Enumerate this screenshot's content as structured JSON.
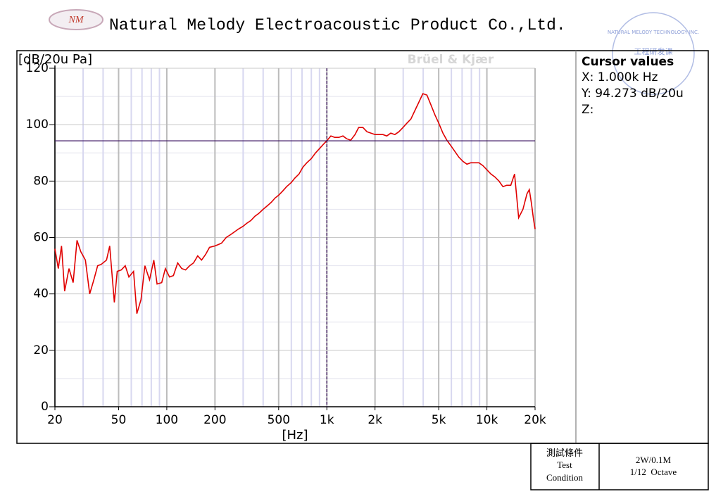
{
  "header": {
    "logo": "NM",
    "title": "Natural Melody Electroacoustic Product Co.,Ltd.",
    "stamp_outer": "NATURAL MELODY TECHNOLOGY INC.",
    "stamp_inner": "工程研发课"
  },
  "chart_data": {
    "type": "line",
    "ylabel": "[dB/20u Pa]",
    "xlabel": "[Hz]",
    "watermark": "Brüel & Kjær",
    "xscale": "log",
    "xlim": [
      20,
      20000
    ],
    "ylim": [
      0,
      120
    ],
    "grid": true,
    "xticks": [
      20,
      50,
      100,
      200,
      500,
      {
        "value": 1000,
        "label": "1k"
      },
      {
        "value": 2000,
        "label": "2k"
      },
      {
        "value": 5000,
        "label": "5k"
      },
      {
        "value": 10000,
        "label": "10k"
      },
      {
        "value": 20000,
        "label": "20k"
      }
    ],
    "xminorticks": [
      30,
      40,
      60,
      70,
      80,
      90,
      300,
      400,
      600,
      700,
      800,
      900,
      3000,
      4000,
      6000,
      7000,
      8000,
      9000
    ],
    "yticks": [
      0,
      20,
      40,
      60,
      80,
      100,
      120
    ],
    "yminorticks": [
      10,
      30,
      50,
      70,
      90,
      110
    ],
    "cursor": {
      "x": 1000,
      "y": 94.273,
      "color": "#3c1361"
    },
    "x": [
      20,
      21,
      22,
      23,
      24.5,
      26,
      27.5,
      29,
      31,
      33,
      35,
      37,
      39,
      42,
      44,
      47,
      49,
      52,
      55,
      58,
      62,
      65,
      69,
      73,
      78,
      83,
      87,
      93,
      98,
      104,
      110,
      117,
      124,
      131,
      139,
      147,
      156,
      165,
      175,
      185,
      200,
      210,
      220,
      235,
      250,
      265,
      280,
      300,
      315,
      335,
      355,
      375,
      400,
      420,
      450,
      475,
      500,
      530,
      560,
      600,
      630,
      670,
      710,
      750,
      800,
      850,
      900,
      950,
      1000,
      1060,
      1120,
      1190,
      1260,
      1330,
      1410,
      1500,
      1580,
      1680,
      1780,
      1890,
      2000,
      2110,
      2240,
      2370,
      2510,
      2660,
      2820,
      2990,
      3160,
      3350,
      3550,
      3760,
      3980,
      4220,
      4470,
      4730,
      5010,
      5310,
      5620,
      5960,
      6310,
      6680,
      7080,
      7500,
      7940,
      8410,
      8910,
      9440,
      10000,
      10600,
      11200,
      11900,
      12600,
      13300,
      14100,
      14900,
      15800,
      16800,
      17800,
      18400,
      19000,
      19500,
      20000
    ],
    "series": [
      {
        "color": "#e00000",
        "values": [
          56,
          49,
          57,
          41,
          49,
          44,
          59,
          55,
          52,
          40,
          45,
          50,
          50.5,
          52,
          57,
          37,
          48,
          48.5,
          50,
          46,
          48,
          33,
          38,
          50,
          45,
          52,
          43.5,
          44,
          49,
          46,
          46.5,
          51,
          49,
          48.5,
          50,
          51,
          53.5,
          52,
          54,
          56.5,
          57,
          57.5,
          58,
          60,
          61,
          62,
          63,
          64,
          65,
          66,
          67.5,
          68.5,
          70,
          71,
          72.5,
          74,
          75,
          76.5,
          78,
          79.5,
          81,
          82.5,
          85,
          86.5,
          88,
          90,
          91.5,
          93,
          94.3,
          96,
          95.5,
          95.5,
          96,
          95,
          94.5,
          96.5,
          99,
          99,
          97.5,
          97,
          96.5,
          96.5,
          96.5,
          96,
          97,
          96.5,
          97.5,
          99,
          100.5,
          102,
          105,
          108,
          111,
          110.5,
          107,
          103.5,
          100.5,
          97,
          94.5,
          92.5,
          90.5,
          88.5,
          87,
          86,
          86.5,
          86.5,
          86.5,
          85.5,
          84,
          82.5,
          81.5,
          80,
          78,
          78.5,
          78.5,
          82.5,
          67,
          70,
          75.5,
          77,
          72,
          67,
          63
        ]
      }
    ]
  },
  "cursor_panel": {
    "title": "Cursor values",
    "x": "X: 1.000k Hz",
    "y": "Y: 94.273 dB/20u",
    "z": "Z:"
  },
  "condition": {
    "label_cn": "測試條件",
    "label_en1": "Test",
    "label_en2": "Condition",
    "value1": "2W/0.1M",
    "value2": "1/12  Octave"
  }
}
